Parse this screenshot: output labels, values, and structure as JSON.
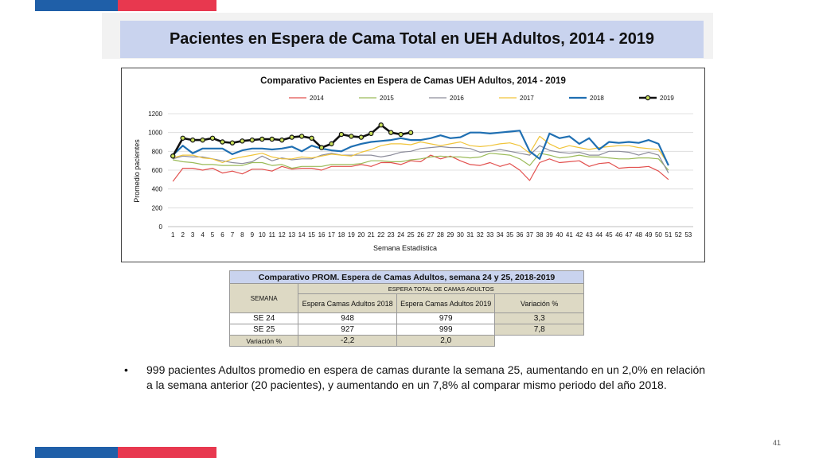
{
  "slide": {
    "title": "Pacientes en Espera de Cama Total en UEH Adultos, 2014 - 2019",
    "page_number": "41",
    "colors": {
      "red": "#e8384f",
      "blue": "#1f5fa8",
      "title_bg": "#c9d3ee"
    }
  },
  "chart_data": {
    "type": "line",
    "title": "Comparativo Pacientes en Espera de Camas UEH Adultos, 2014 - 2019",
    "xlabel": "Semana Estadística",
    "ylabel": "Promedio pacientes",
    "ylim": [
      0,
      1200
    ],
    "yticks": [
      0,
      200,
      400,
      600,
      800,
      1000,
      1200
    ],
    "legend_position": "top",
    "categories": [
      "1",
      "2",
      "3",
      "4",
      "5",
      "6",
      "7",
      "8",
      "9",
      "10",
      "11",
      "12",
      "13",
      "14",
      "15",
      "16",
      "17",
      "18",
      "19",
      "20",
      "21",
      "22",
      "23",
      "24",
      "25",
      "26",
      "27",
      "28",
      "29",
      "30",
      "31",
      "32",
      "33",
      "34",
      "35",
      "36",
      "37",
      "38",
      "39",
      "40",
      "41",
      "42",
      "43",
      "44",
      "45",
      "46",
      "47",
      "48",
      "49",
      "50",
      "51",
      "52",
      "53"
    ],
    "series": [
      {
        "name": "2014",
        "color": "#e2504e",
        "width": 1.2,
        "markers": false,
        "values": [
          480,
          620,
          620,
          600,
          620,
          570,
          590,
          560,
          610,
          610,
          590,
          640,
          610,
          620,
          620,
          600,
          640,
          640,
          640,
          660,
          640,
          680,
          680,
          660,
          700,
          690,
          760,
          720,
          750,
          700,
          660,
          650,
          680,
          640,
          670,
          600,
          490,
          680,
          720,
          680,
          690,
          700,
          640,
          670,
          680,
          620,
          630,
          630,
          640,
          590,
          500,
          null,
          null
        ]
      },
      {
        "name": "2015",
        "color": "#9bbb59",
        "width": 1.2,
        "markers": false,
        "values": [
          710,
          690,
          680,
          660,
          660,
          650,
          650,
          650,
          680,
          680,
          650,
          660,
          620,
          640,
          640,
          640,
          660,
          660,
          660,
          670,
          700,
          700,
          690,
          690,
          710,
          720,
          740,
          750,
          740,
          740,
          730,
          740,
          780,
          770,
          760,
          720,
          650,
          780,
          760,
          730,
          740,
          760,
          740,
          740,
          730,
          720,
          720,
          730,
          730,
          720,
          600,
          null,
          null
        ]
      },
      {
        "name": "2016",
        "color": "#8d8d9b",
        "width": 1.2,
        "markers": false,
        "values": [
          720,
          750,
          740,
          740,
          720,
          700,
          680,
          670,
          690,
          750,
          700,
          730,
          710,
          720,
          720,
          760,
          780,
          760,
          760,
          760,
          760,
          740,
          760,
          790,
          800,
          830,
          840,
          850,
          840,
          840,
          830,
          790,
          800,
          820,
          800,
          780,
          760,
          860,
          810,
          790,
          780,
          790,
          760,
          760,
          800,
          800,
          790,
          760,
          790,
          760,
          570,
          null,
          null
        ]
      },
      {
        "name": "2017",
        "color": "#f0c43a",
        "width": 1.2,
        "markers": false,
        "values": [
          730,
          760,
          760,
          730,
          720,
          680,
          720,
          740,
          760,
          780,
          740,
          720,
          720,
          740,
          730,
          750,
          770,
          760,
          750,
          790,
          820,
          860,
          880,
          880,
          870,
          900,
          880,
          860,
          880,
          900,
          860,
          850,
          860,
          880,
          890,
          860,
          780,
          960,
          880,
          830,
          860,
          840,
          820,
          840,
          850,
          860,
          860,
          840,
          830,
          820,
          660,
          null,
          null
        ]
      },
      {
        "name": "2018",
        "color": "#1f6fb2",
        "width": 2.2,
        "markers": false,
        "values": [
          760,
          860,
          780,
          830,
          830,
          830,
          770,
          810,
          830,
          830,
          820,
          830,
          850,
          800,
          860,
          830,
          810,
          800,
          850,
          880,
          900,
          910,
          920,
          940,
          920,
          920,
          940,
          970,
          940,
          950,
          1000,
          1000,
          990,
          1000,
          1010,
          1020,
          800,
          720,
          990,
          940,
          960,
          880,
          940,
          820,
          900,
          890,
          900,
          890,
          920,
          880,
          650,
          null,
          null
        ]
      },
      {
        "name": "2019",
        "color": "#111111",
        "width": 2.6,
        "markers": true,
        "marker_color": "#c9e05a",
        "values": [
          750,
          940,
          920,
          920,
          940,
          900,
          890,
          910,
          920,
          930,
          930,
          920,
          950,
          960,
          940,
          840,
          880,
          980,
          960,
          950,
          990,
          1080,
          1000,
          980,
          999,
          null,
          null,
          null,
          null,
          null,
          null,
          null,
          null,
          null,
          null,
          null,
          null,
          null,
          null,
          null,
          null,
          null,
          null,
          null,
          null,
          null,
          null,
          null,
          null,
          null,
          null,
          null,
          null
        ]
      }
    ]
  },
  "table": {
    "caption": "Comparativo PROM. Espera de Camas Adultos, semana 24 y 25, 2018-2019",
    "semana_label": "SEMANA",
    "group_header": "ESPERA TOTAL DE CAMAS ADULTOS",
    "col_2018": "Espera Camas Adultos 2018",
    "col_2019": "Espera Camas Adultos 2019",
    "col_var": "Variación %",
    "rows": [
      {
        "semana": "SE 24",
        "v2018": "948",
        "v2019": "979",
        "var": "3,3"
      },
      {
        "semana": "SE 25",
        "v2018": "927",
        "v2019": "999",
        "var": "7,8"
      }
    ],
    "var_row": {
      "label": "Variación %",
      "v2018": "-2,2",
      "v2019": "2,0"
    }
  },
  "bullet": {
    "text": "999 pacientes Adultos promedio en espera de camas durante la semana 25, aumentando  en un 2,0% en relación a la semana anterior (20 pacientes),  y aumentando en un 7,8% al comparar mismo periodo del año 2018."
  }
}
